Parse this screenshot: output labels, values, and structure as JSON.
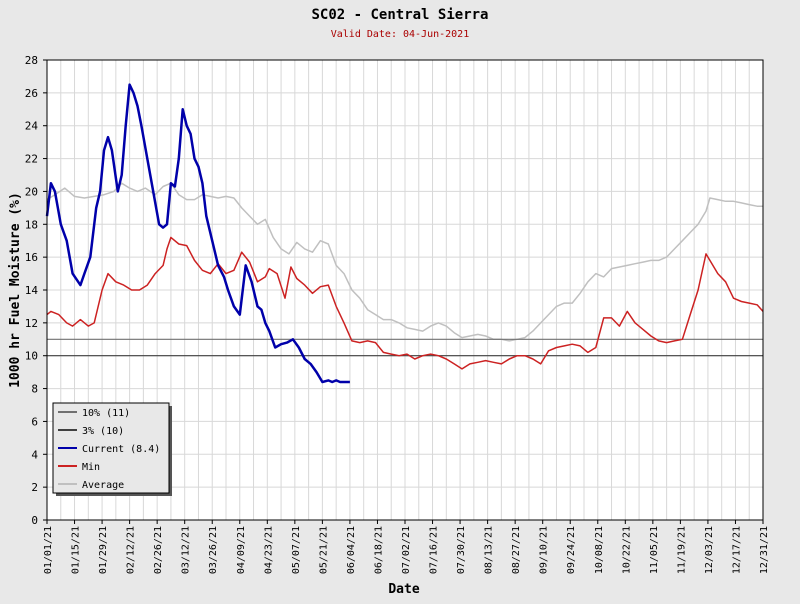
{
  "chart_data": {
    "type": "line",
    "title": "SC02 - Central Sierra",
    "subtitle": "Valid Date: 04-Jun-2021",
    "xlabel": "Date",
    "ylabel": "1000 hr Fuel Moisture (%)",
    "xlim": [
      "2021-01-01",
      "2021-12-31"
    ],
    "ylim": [
      0,
      28
    ],
    "yticks": [
      0,
      2,
      4,
      6,
      8,
      10,
      12,
      14,
      16,
      18,
      20,
      22,
      24,
      26,
      28
    ],
    "x_tick_labels": [
      "01/01/21",
      "01/15/21",
      "01/29/21",
      "02/12/21",
      "02/26/21",
      "03/12/21",
      "03/26/21",
      "04/09/21",
      "04/23/21",
      "05/07/21",
      "05/21/21",
      "06/04/21",
      "06/18/21",
      "07/02/21",
      "07/16/21",
      "07/30/21",
      "08/13/21",
      "08/27/21",
      "09/10/21",
      "09/24/21",
      "10/08/21",
      "10/22/21",
      "11/05/21",
      "11/19/21",
      "12/03/21",
      "12/17/21",
      "12/31/21"
    ],
    "grid": true,
    "legend_position": "bottom-left",
    "colors": {
      "background": "#e8e8e8",
      "plot_background": "#ffffff",
      "grid": "#d8d8d8",
      "title": "#000000",
      "subtitle": "#aa0000"
    },
    "series": [
      {
        "name": "10% (11)",
        "color": "#707070",
        "x": [
          "2021-01-01",
          "2021-12-31"
        ],
        "values": [
          11,
          11
        ]
      },
      {
        "name": "3% (10)",
        "color": "#404040",
        "x": [
          "2021-01-01",
          "2021-12-31"
        ],
        "values": [
          10,
          10
        ]
      },
      {
        "name": "Current (8.4)",
        "color": "#0000aa",
        "x": [
          "2021-01-01",
          "2021-01-03",
          "2021-01-05",
          "2021-01-08",
          "2021-01-11",
          "2021-01-14",
          "2021-01-18",
          "2021-01-20",
          "2021-01-23",
          "2021-01-26",
          "2021-01-28",
          "2021-01-30",
          "2021-02-01",
          "2021-02-03",
          "2021-02-06",
          "2021-02-08",
          "2021-02-10",
          "2021-02-12",
          "2021-02-14",
          "2021-02-16",
          "2021-02-18",
          "2021-02-21",
          "2021-02-24",
          "2021-02-27",
          "2021-03-01",
          "2021-03-03",
          "2021-03-05",
          "2021-03-07",
          "2021-03-09",
          "2021-03-11",
          "2021-03-13",
          "2021-03-15",
          "2021-03-17",
          "2021-03-19",
          "2021-03-21",
          "2021-03-23",
          "2021-03-26",
          "2021-03-29",
          "2021-04-01",
          "2021-04-03",
          "2021-04-06",
          "2021-04-09",
          "2021-04-12",
          "2021-04-15",
          "2021-04-18",
          "2021-04-20",
          "2021-04-22",
          "2021-04-24",
          "2021-04-27",
          "2021-04-30",
          "2021-05-03",
          "2021-05-06",
          "2021-05-09",
          "2021-05-12",
          "2021-05-15",
          "2021-05-18",
          "2021-05-21",
          "2021-05-24",
          "2021-05-26",
          "2021-05-28",
          "2021-05-30",
          "2021-06-01",
          "2021-06-03",
          "2021-06-04"
        ],
        "values": [
          18.5,
          20.5,
          20.0,
          18.0,
          17.0,
          15.0,
          14.3,
          15.0,
          16.0,
          19.0,
          20.0,
          22.5,
          23.3,
          22.5,
          20.0,
          21.0,
          24.0,
          26.5,
          26.0,
          25.2,
          24.0,
          22.0,
          20.0,
          18.0,
          17.8,
          18.0,
          20.5,
          20.3,
          22.0,
          25.0,
          24.0,
          23.5,
          22.0,
          21.5,
          20.5,
          18.5,
          17.0,
          15.5,
          14.8,
          14.0,
          13.0,
          12.5,
          15.5,
          14.5,
          13.0,
          12.8,
          12.0,
          11.5,
          10.5,
          10.7,
          10.8,
          11.0,
          10.5,
          9.8,
          9.5,
          9.0,
          8.4,
          8.5,
          8.4,
          8.5,
          8.4,
          8.4,
          8.4,
          8.4
        ]
      },
      {
        "name": "Min",
        "color": "#cc2222",
        "x": [
          "2021-01-01",
          "2021-01-03",
          "2021-01-07",
          "2021-01-11",
          "2021-01-14",
          "2021-01-18",
          "2021-01-22",
          "2021-01-25",
          "2021-01-29",
          "2021-02-01",
          "2021-02-05",
          "2021-02-09",
          "2021-02-13",
          "2021-02-17",
          "2021-02-21",
          "2021-02-25",
          "2021-03-01",
          "2021-03-03",
          "2021-03-05",
          "2021-03-09",
          "2021-03-13",
          "2021-03-17",
          "2021-03-21",
          "2021-03-25",
          "2021-03-29",
          "2021-04-02",
          "2021-04-06",
          "2021-04-10",
          "2021-04-14",
          "2021-04-18",
          "2021-04-22",
          "2021-04-24",
          "2021-04-28",
          "2021-05-02",
          "2021-05-05",
          "2021-05-08",
          "2021-05-12",
          "2021-05-16",
          "2021-05-20",
          "2021-05-24",
          "2021-05-28",
          "2021-06-01",
          "2021-06-05",
          "2021-06-09",
          "2021-06-13",
          "2021-06-17",
          "2021-06-21",
          "2021-06-25",
          "2021-06-29",
          "2021-07-03",
          "2021-07-07",
          "2021-07-11",
          "2021-07-15",
          "2021-07-19",
          "2021-07-23",
          "2021-07-27",
          "2021-07-31",
          "2021-08-04",
          "2021-08-08",
          "2021-08-12",
          "2021-08-16",
          "2021-08-20",
          "2021-08-24",
          "2021-08-28",
          "2021-09-01",
          "2021-09-05",
          "2021-09-09",
          "2021-09-13",
          "2021-09-17",
          "2021-09-21",
          "2021-09-25",
          "2021-09-29",
          "2021-10-03",
          "2021-10-07",
          "2021-10-11",
          "2021-10-15",
          "2021-10-19",
          "2021-10-23",
          "2021-10-27",
          "2021-10-31",
          "2021-11-04",
          "2021-11-08",
          "2021-11-12",
          "2021-11-16",
          "2021-11-20",
          "2021-11-24",
          "2021-11-28",
          "2021-12-02",
          "2021-12-04",
          "2021-12-08",
          "2021-12-12",
          "2021-12-16",
          "2021-12-20",
          "2021-12-24",
          "2021-12-28",
          "2021-12-31"
        ],
        "values": [
          12.5,
          12.7,
          12.5,
          12.0,
          11.8,
          12.2,
          11.8,
          12.0,
          14.0,
          15.0,
          14.5,
          14.3,
          14.0,
          14.0,
          14.3,
          15.0,
          15.5,
          16.5,
          17.2,
          16.8,
          16.7,
          15.8,
          15.2,
          15.0,
          15.6,
          15.0,
          15.2,
          16.3,
          15.7,
          14.5,
          14.8,
          15.3,
          15.0,
          13.5,
          15.4,
          14.7,
          14.3,
          13.8,
          14.2,
          14.3,
          13.0,
          12.0,
          10.9,
          10.8,
          10.9,
          10.8,
          10.2,
          10.1,
          10.0,
          10.1,
          9.8,
          10.0,
          10.1,
          10.0,
          9.8,
          9.5,
          9.2,
          9.5,
          9.6,
          9.7,
          9.6,
          9.5,
          9.8,
          10.0,
          10.0,
          9.8,
          9.5,
          10.3,
          10.5,
          10.6,
          10.7,
          10.6,
          10.2,
          10.5,
          12.3,
          12.3,
          11.8,
          12.7,
          12.0,
          11.6,
          11.2,
          10.9,
          10.8,
          10.9,
          11.0,
          12.5,
          14.0,
          16.2,
          15.8,
          15.0,
          14.5,
          13.5,
          13.3,
          13.2,
          13.1,
          12.7
        ]
      },
      {
        "name": "Average",
        "color": "#c0c0c0",
        "x": [
          "2021-01-01",
          "2021-01-05",
          "2021-01-10",
          "2021-01-15",
          "2021-01-20",
          "2021-01-25",
          "2021-01-30",
          "2021-02-04",
          "2021-02-08",
          "2021-02-12",
          "2021-02-16",
          "2021-02-20",
          "2021-02-25",
          "2021-03-01",
          "2021-03-05",
          "2021-03-09",
          "2021-03-13",
          "2021-03-17",
          "2021-03-21",
          "2021-03-25",
          "2021-03-29",
          "2021-04-02",
          "2021-04-06",
          "2021-04-10",
          "2021-04-14",
          "2021-04-18",
          "2021-04-22",
          "2021-04-26",
          "2021-04-30",
          "2021-05-04",
          "2021-05-08",
          "2021-05-12",
          "2021-05-16",
          "2021-05-20",
          "2021-05-24",
          "2021-05-28",
          "2021-06-01",
          "2021-06-05",
          "2021-06-09",
          "2021-06-13",
          "2021-06-17",
          "2021-06-21",
          "2021-06-25",
          "2021-06-29",
          "2021-07-03",
          "2021-07-07",
          "2021-07-11",
          "2021-07-15",
          "2021-07-19",
          "2021-07-23",
          "2021-07-27",
          "2021-07-31",
          "2021-08-04",
          "2021-08-08",
          "2021-08-12",
          "2021-08-16",
          "2021-08-20",
          "2021-08-24",
          "2021-08-28",
          "2021-09-01",
          "2021-09-05",
          "2021-09-09",
          "2021-09-13",
          "2021-09-17",
          "2021-09-21",
          "2021-09-25",
          "2021-09-29",
          "2021-10-03",
          "2021-10-07",
          "2021-10-11",
          "2021-10-15",
          "2021-10-19",
          "2021-10-23",
          "2021-10-27",
          "2021-10-31",
          "2021-11-04",
          "2021-11-08",
          "2021-11-12",
          "2021-11-16",
          "2021-11-20",
          "2021-11-24",
          "2021-11-28",
          "2021-12-02",
          "2021-12-04",
          "2021-12-08",
          "2021-12-12",
          "2021-12-16",
          "2021-12-20",
          "2021-12-24",
          "2021-12-28",
          "2021-12-31"
        ],
        "values": [
          19.5,
          19.8,
          20.2,
          19.7,
          19.6,
          19.7,
          19.8,
          20.0,
          20.5,
          20.2,
          20.0,
          20.2,
          19.8,
          20.3,
          20.5,
          19.8,
          19.5,
          19.5,
          19.8,
          19.7,
          19.6,
          19.7,
          19.6,
          19.0,
          18.5,
          18.0,
          18.3,
          17.2,
          16.5,
          16.2,
          16.9,
          16.5,
          16.3,
          17.0,
          16.8,
          15.5,
          15.0,
          14.0,
          13.5,
          12.8,
          12.5,
          12.2,
          12.2,
          12.0,
          11.7,
          11.6,
          11.5,
          11.8,
          12.0,
          11.8,
          11.4,
          11.1,
          11.2,
          11.3,
          11.2,
          11.0,
          11.0,
          10.9,
          11.0,
          11.1,
          11.5,
          12.0,
          12.5,
          13.0,
          13.2,
          13.2,
          13.8,
          14.5,
          15.0,
          14.8,
          15.3,
          15.4,
          15.5,
          15.6,
          15.7,
          15.8,
          15.8,
          16.0,
          16.5,
          17.0,
          17.5,
          18.0,
          18.8,
          19.6,
          19.5,
          19.4,
          19.4,
          19.3,
          19.2,
          19.1,
          19.1
        ]
      }
    ]
  }
}
